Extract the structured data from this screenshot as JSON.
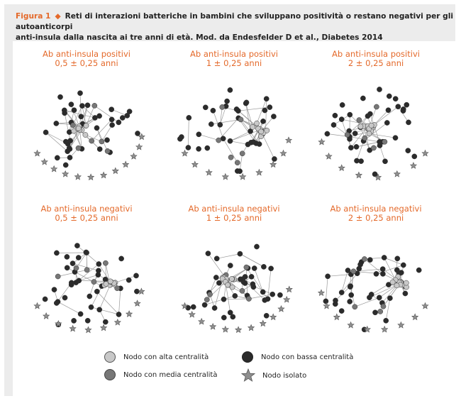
{
  "header": {
    "figure_label": "Figura 1",
    "caption_line1": "Reti di interazioni batteriche in bambini che sviluppano positività o restano negativi per gli autoanticorpi",
    "caption_line2": "anti-insula dalla nascita ai tre anni di età. Mod. da Endesfelder D et al., Diabetes 2014"
  },
  "colors": {
    "accent": "#e4692a",
    "high": "#c8c8c8",
    "medium": "#777777",
    "low": "#2b2b2b",
    "isolated": "#8f8f8f",
    "edge": "#9a9a9a"
  },
  "panels": [
    {
      "title": "Ab anti-insula positivi",
      "subtitle": "0,5 ± 0,25 anni"
    },
    {
      "title": "Ab anti-insula positivi",
      "subtitle": "1 ± 0,25 anni"
    },
    {
      "title": "Ab anti-insula positivi",
      "subtitle": "2 ± 0,25 anni"
    },
    {
      "title": "Ab anti-insula negativi",
      "subtitle": "0,5 ± 0,25 anni"
    },
    {
      "title": "Ab anti-insula negativi",
      "subtitle": "1 ± 0,25 anni"
    },
    {
      "title": "Ab anti-insula negativi",
      "subtitle": "2 ± 0,25 anni"
    }
  ],
  "legend": [
    {
      "label": "Nodo con alta centralità",
      "type": "high"
    },
    {
      "label": "Nodo con bassa centralità",
      "type": "low"
    },
    {
      "label": "Nodo con media centralità",
      "type": "medium"
    },
    {
      "label": "Nodo isolato",
      "type": "isolated"
    }
  ]
}
